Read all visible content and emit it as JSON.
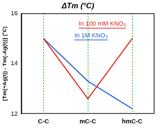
{
  "chart_data": {
    "type": "line",
    "title": "ΔTm (°C)",
    "y_label": "[Tm(+Ag(I)) - Tm(-Ag(I))] (°C)",
    "categories": [
      "C-C",
      "mC-C",
      "hmC-C"
    ],
    "series": [
      {
        "name": "In 100 mM KNO₃",
        "color": "#e2231a",
        "values": [
          15.0,
          12.6,
          15.0
        ]
      },
      {
        "name": "In 1M KNO₃",
        "color": "#1f5fd6",
        "values": [
          15.0,
          13.3,
          12.2
        ]
      }
    ],
    "ylim": [
      12,
      16
    ],
    "yticks": [
      12,
      14,
      16
    ],
    "grid": true
  }
}
